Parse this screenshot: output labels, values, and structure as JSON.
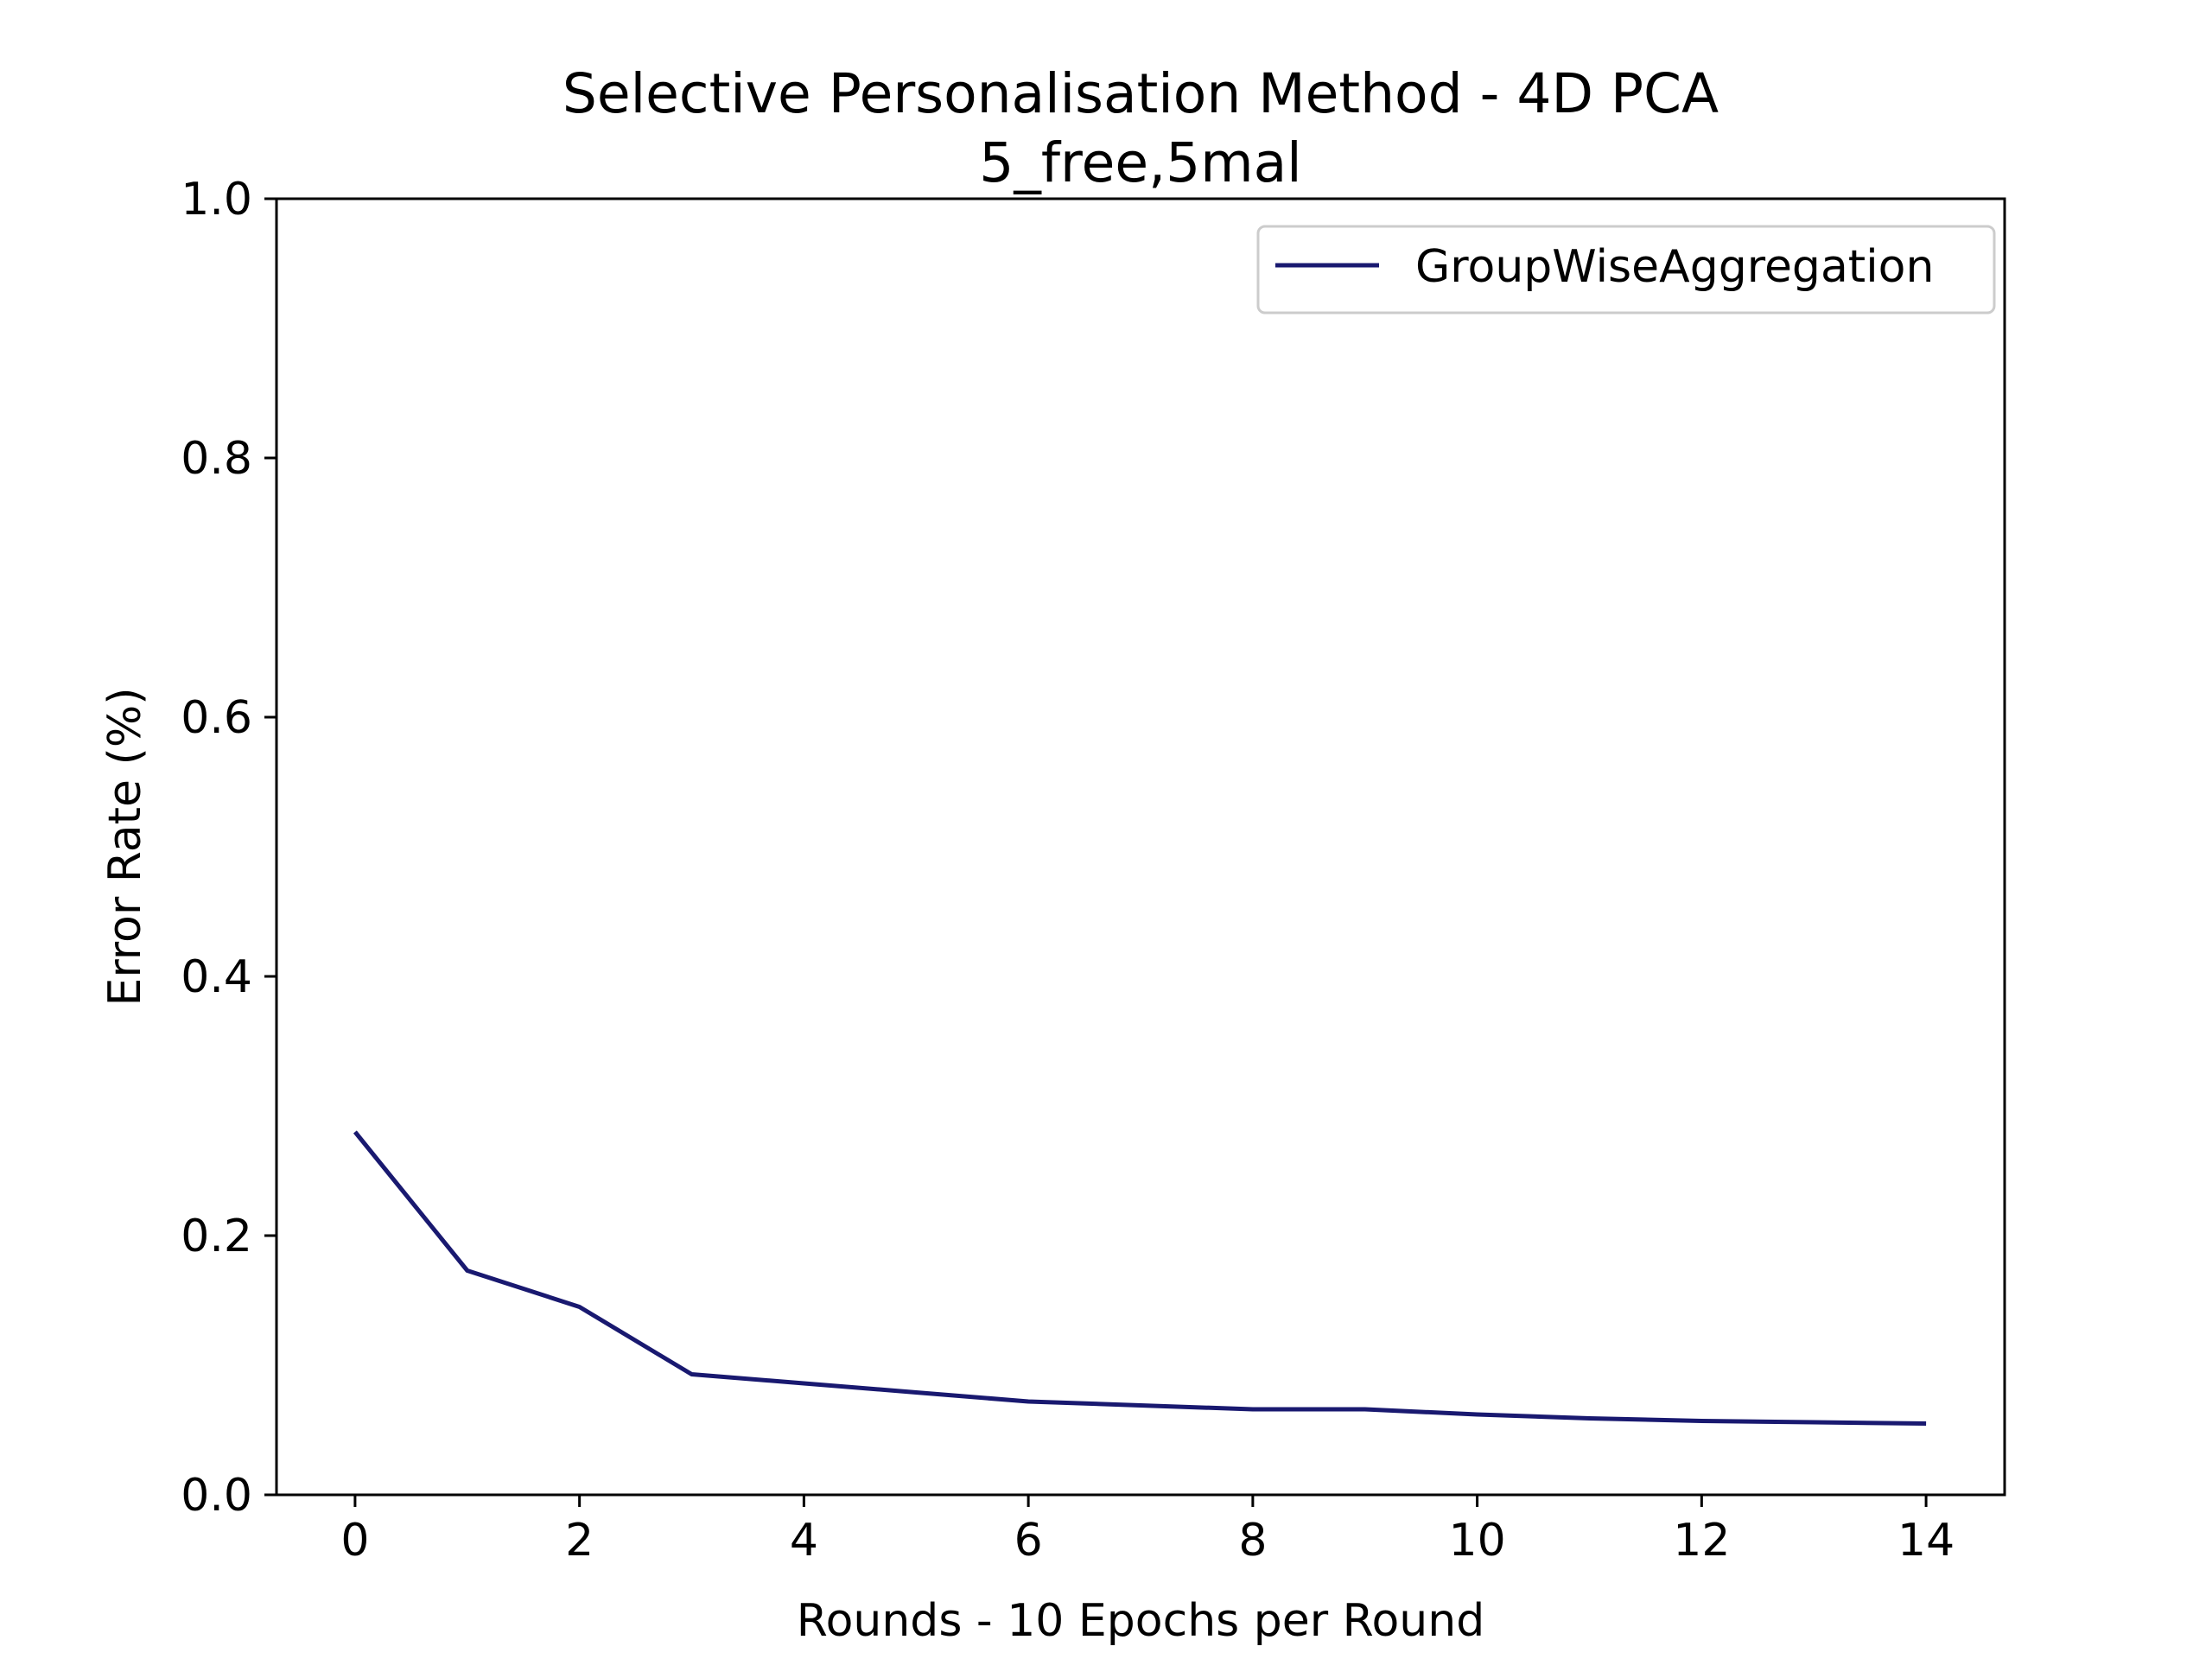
{
  "chart_data": {
    "type": "line",
    "title": "Selective Personalisation Method - 4D PCA",
    "subtitle": "5_free,5mal",
    "xlabel": "Rounds - 10 Epochs per Round",
    "ylabel": "Error Rate (%)",
    "xlim": [
      -0.7,
      14.7
    ],
    "ylim": [
      0.0,
      1.0
    ],
    "x_ticks": [
      "0",
      "2",
      "4",
      "6",
      "8",
      "10",
      "12",
      "14"
    ],
    "y_ticks": [
      "0.0",
      "0.2",
      "0.4",
      "0.6",
      "0.8",
      "1.0"
    ],
    "grid": false,
    "legend_position": "top-right",
    "series": [
      {
        "name": "GroupWiseAggregation",
        "color": "#191970",
        "x": [
          0,
          1,
          2,
          3,
          4,
          5,
          6,
          7,
          8,
          9,
          10,
          11,
          12,
          13,
          14
        ],
        "y": [
          0.28,
          0.173,
          0.145,
          0.093,
          0.086,
          0.079,
          0.072,
          0.069,
          0.066,
          0.066,
          0.062,
          0.059,
          0.057,
          0.056,
          0.055
        ]
      }
    ]
  }
}
